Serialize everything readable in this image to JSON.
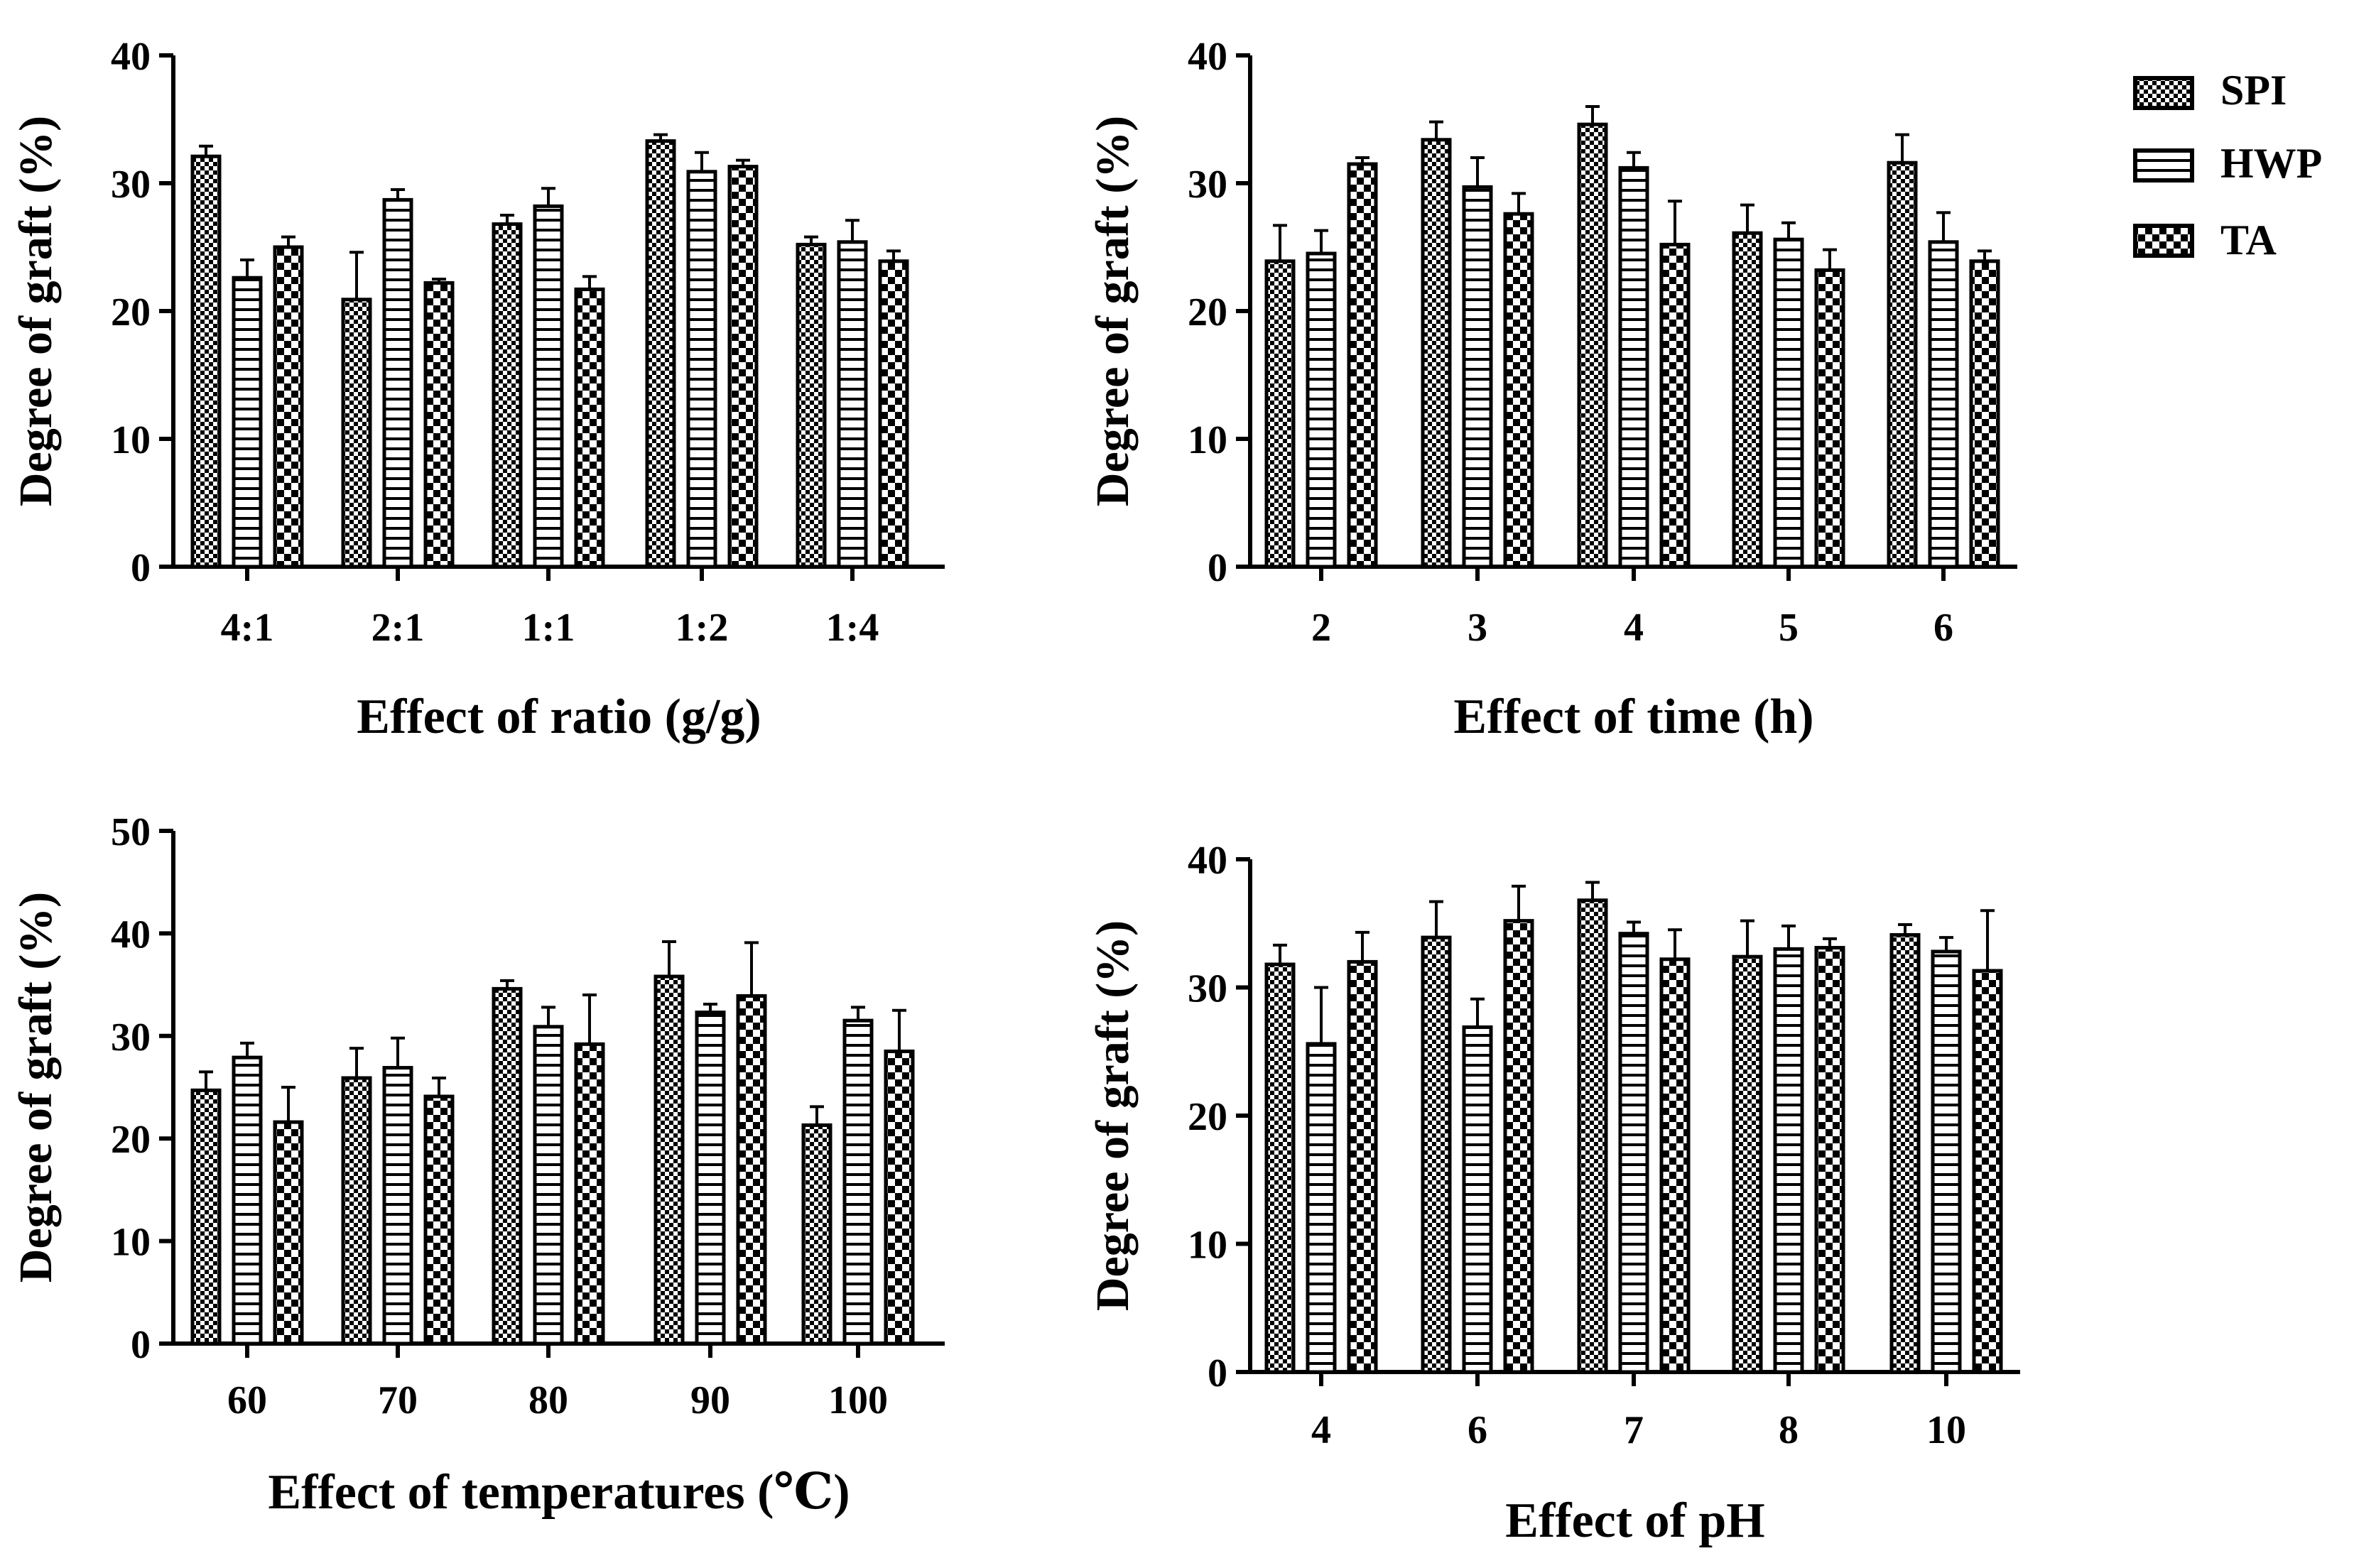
{
  "legend": {
    "items": [
      {
        "label": "SPI",
        "pattern": "checker"
      },
      {
        "label": "HWP",
        "pattern": "hstripe"
      },
      {
        "label": "TA",
        "pattern": "checker-coarse"
      }
    ]
  },
  "colors": {
    "ink": "#000000",
    "background": "#ffffff"
  },
  "chart_data": [
    {
      "type": "bar",
      "id": "ratio",
      "title": "",
      "xlabel": "Effect of ratio (g/g)",
      "ylabel": "Degree of graft (%)",
      "ylim": [
        0,
        40
      ],
      "yticks": [
        0,
        10,
        20,
        30,
        40
      ],
      "categories": [
        "4:1",
        "2:1",
        "1:1",
        "1:2",
        "1:4"
      ],
      "series": [
        {
          "name": "SPI",
          "values": [
            32.1,
            20.9,
            26.8,
            33.3,
            25.2
          ],
          "errors": [
            0.8,
            3.7,
            0.7,
            0.5,
            0.6
          ]
        },
        {
          "name": "HWP",
          "values": [
            22.6,
            28.7,
            28.2,
            30.9,
            25.4
          ],
          "errors": [
            1.4,
            0.8,
            1.4,
            1.5,
            1.7
          ]
        },
        {
          "name": "TA",
          "values": [
            25.0,
            22.2,
            21.7,
            31.3,
            23.9
          ],
          "errors": [
            0.8,
            0.3,
            1.0,
            0.5,
            0.8
          ]
        }
      ]
    },
    {
      "type": "bar",
      "id": "time",
      "title": "",
      "xlabel": "Effect of time (h)",
      "ylabel": "Degree of graft (%)",
      "ylim": [
        0,
        40
      ],
      "yticks": [
        0,
        10,
        20,
        30,
        40
      ],
      "categories": [
        "2",
        "3",
        "4",
        "5",
        "6"
      ],
      "series": [
        {
          "name": "SPI",
          "values": [
            23.9,
            33.4,
            34.6,
            26.1,
            31.6
          ],
          "errors": [
            2.8,
            1.4,
            1.4,
            2.2,
            2.2
          ]
        },
        {
          "name": "HWP",
          "values": [
            24.5,
            29.7,
            31.2,
            25.6,
            25.4
          ],
          "errors": [
            1.8,
            2.3,
            1.2,
            1.3,
            2.3
          ]
        },
        {
          "name": "TA",
          "values": [
            31.5,
            27.6,
            25.2,
            23.2,
            23.9
          ],
          "errors": [
            0.5,
            1.6,
            3.4,
            1.6,
            0.8
          ]
        }
      ]
    },
    {
      "type": "bar",
      "id": "temperature",
      "title": "",
      "xlabel": "Effect of temperatures (℃)",
      "ylabel": "Degree of graft (%)",
      "ylim": [
        0,
        50
      ],
      "yticks": [
        0,
        10,
        20,
        30,
        40,
        50
      ],
      "categories": [
        "60",
        "70",
        "80",
        "90",
        "100"
      ],
      "series": [
        {
          "name": "SPI",
          "values": [
            24.7,
            25.9,
            34.6,
            35.8,
            21.3
          ],
          "errors": [
            1.8,
            2.9,
            0.8,
            3.4,
            1.8
          ]
        },
        {
          "name": "HWP",
          "values": [
            27.9,
            26.9,
            30.9,
            32.3,
            31.5
          ],
          "errors": [
            1.4,
            2.9,
            1.9,
            0.8,
            1.3
          ]
        },
        {
          "name": "TA",
          "values": [
            21.6,
            24.1,
            29.2,
            33.9,
            28.5
          ],
          "errors": [
            3.4,
            1.8,
            4.8,
            5.2,
            4.0
          ]
        }
      ]
    },
    {
      "type": "bar",
      "id": "ph",
      "title": "",
      "xlabel": "Effect of pH",
      "ylabel": "Degree of graft (%)",
      "ylim": [
        0,
        40
      ],
      "yticks": [
        0,
        10,
        20,
        30,
        40
      ],
      "categories": [
        "4",
        "6",
        "7",
        "8",
        "10"
      ],
      "series": [
        {
          "name": "SPI",
          "values": [
            31.8,
            33.9,
            36.8,
            32.4,
            34.1
          ],
          "errors": [
            1.5,
            2.8,
            1.4,
            2.8,
            0.8
          ]
        },
        {
          "name": "HWP",
          "values": [
            25.6,
            26.9,
            34.2,
            33.0,
            32.8
          ],
          "errors": [
            4.4,
            2.2,
            0.9,
            1.8,
            1.1
          ]
        },
        {
          "name": "TA",
          "values": [
            32.0,
            35.2,
            32.2,
            33.1,
            31.3
          ],
          "errors": [
            2.3,
            2.7,
            2.3,
            0.7,
            4.7
          ]
        }
      ]
    }
  ]
}
